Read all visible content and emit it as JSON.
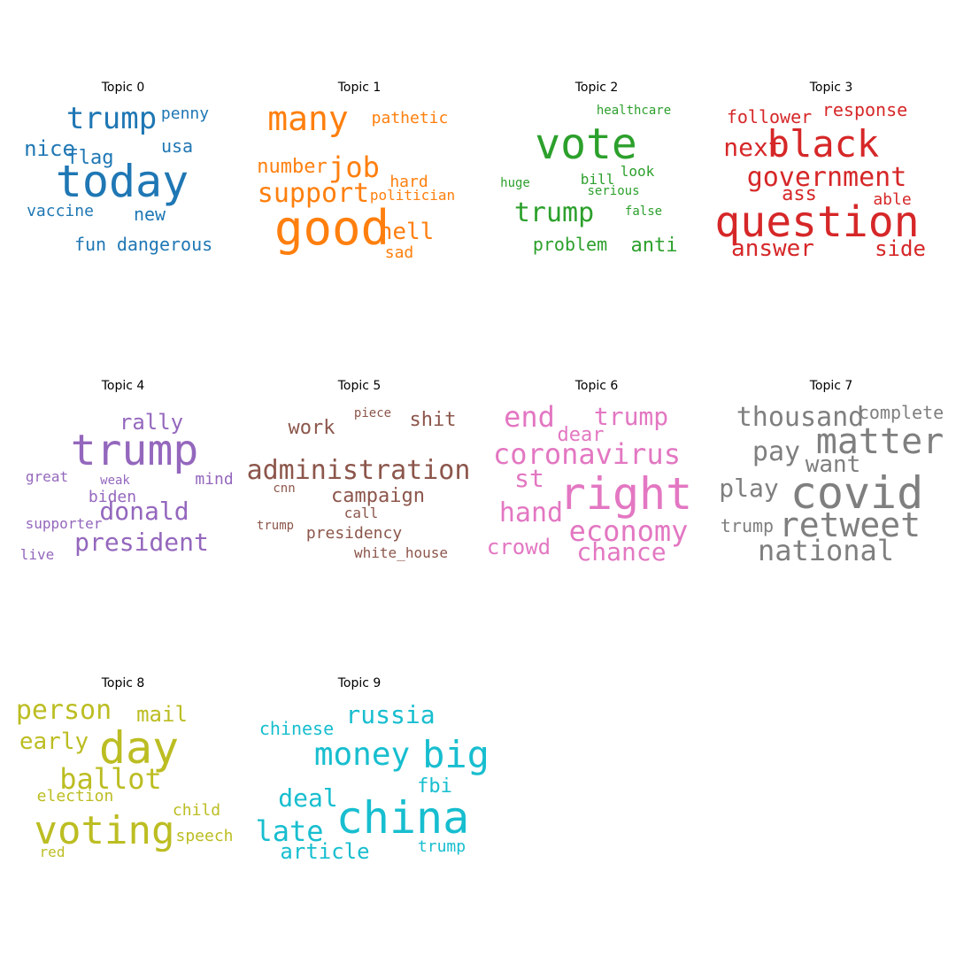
{
  "chart_data": [
    {
      "type": "wordcloud",
      "title": "Topic 0",
      "color": "#1f77b4",
      "words": [
        {
          "text": "today",
          "weight": 1.0
        },
        {
          "text": "trump",
          "weight": 0.6
        },
        {
          "text": "nice",
          "weight": 0.45
        },
        {
          "text": "usa",
          "weight": 0.4
        },
        {
          "text": "penny",
          "weight": 0.38
        },
        {
          "text": "flag",
          "weight": 0.4
        },
        {
          "text": "vaccine",
          "weight": 0.38
        },
        {
          "text": "new",
          "weight": 0.4
        },
        {
          "text": "fun",
          "weight": 0.4
        },
        {
          "text": "dangerous",
          "weight": 0.42
        }
      ]
    },
    {
      "type": "wordcloud",
      "title": "Topic 1",
      "color": "#ff7f0e",
      "words": [
        {
          "text": "good",
          "weight": 1.0
        },
        {
          "text": "many",
          "weight": 0.7
        },
        {
          "text": "job",
          "weight": 0.6
        },
        {
          "text": "support",
          "weight": 0.58
        },
        {
          "text": "number",
          "weight": 0.42
        },
        {
          "text": "pathetic",
          "weight": 0.35
        },
        {
          "text": "hard",
          "weight": 0.35
        },
        {
          "text": "politician",
          "weight": 0.32
        },
        {
          "text": "hell",
          "weight": 0.5
        },
        {
          "text": "sad",
          "weight": 0.38
        }
      ]
    },
    {
      "type": "wordcloud",
      "title": "Topic 2",
      "color": "#2ca02c",
      "words": [
        {
          "text": "vote",
          "weight": 1.0
        },
        {
          "text": "trump",
          "weight": 0.6
        },
        {
          "text": "healthcare",
          "weight": 0.28
        },
        {
          "text": "huge",
          "weight": 0.28
        },
        {
          "text": "bill",
          "weight": 0.32
        },
        {
          "text": "look",
          "weight": 0.34
        },
        {
          "text": "serious",
          "weight": 0.3
        },
        {
          "text": "false",
          "weight": 0.3
        },
        {
          "text": "problem",
          "weight": 0.4
        },
        {
          "text": "anti",
          "weight": 0.44
        }
      ]
    },
    {
      "type": "wordcloud",
      "title": "Topic 3",
      "color": "#d62728",
      "words": [
        {
          "text": "question",
          "weight": 1.0
        },
        {
          "text": "black",
          "weight": 0.85
        },
        {
          "text": "government",
          "weight": 0.6
        },
        {
          "text": "next",
          "weight": 0.58
        },
        {
          "text": "follower",
          "weight": 0.4
        },
        {
          "text": "response",
          "weight": 0.4
        },
        {
          "text": "ass",
          "weight": 0.42
        },
        {
          "text": "able",
          "weight": 0.36
        },
        {
          "text": "answer",
          "weight": 0.56
        },
        {
          "text": "side",
          "weight": 0.5
        }
      ]
    },
    {
      "type": "wordcloud",
      "title": "Topic 4",
      "color": "#9467bd",
      "words": [
        {
          "text": "trump",
          "weight": 1.0
        },
        {
          "text": "rally",
          "weight": 0.5
        },
        {
          "text": "donald",
          "weight": 0.6
        },
        {
          "text": "president",
          "weight": 0.58
        },
        {
          "text": "great",
          "weight": 0.3
        },
        {
          "text": "weak",
          "weight": 0.27
        },
        {
          "text": "mind",
          "weight": 0.34
        },
        {
          "text": "biden",
          "weight": 0.36
        },
        {
          "text": "supporter",
          "weight": 0.32
        },
        {
          "text": "live",
          "weight": 0.32
        }
      ]
    },
    {
      "type": "wordcloud",
      "title": "Topic 5",
      "color": "#8c564b",
      "words": [
        {
          "text": "administration",
          "weight": 0.58
        },
        {
          "text": "work",
          "weight": 0.46
        },
        {
          "text": "shit",
          "weight": 0.46
        },
        {
          "text": "piece",
          "weight": 0.28
        },
        {
          "text": "campaign",
          "weight": 0.44
        },
        {
          "text": "cnn",
          "weight": 0.28
        },
        {
          "text": "call",
          "weight": 0.3
        },
        {
          "text": "trump",
          "weight": 0.3
        },
        {
          "text": "presidency",
          "weight": 0.36
        },
        {
          "text": "white_house",
          "weight": 0.34
        }
      ]
    },
    {
      "type": "wordcloud",
      "title": "Topic 6",
      "color": "#e377c2",
      "words": [
        {
          "text": "right",
          "weight": 1.0
        },
        {
          "text": "coronavirus",
          "weight": 0.64
        },
        {
          "text": "economy",
          "weight": 0.64
        },
        {
          "text": "end",
          "weight": 0.6
        },
        {
          "text": "trump",
          "weight": 0.56
        },
        {
          "text": "dear",
          "weight": 0.42
        },
        {
          "text": "st",
          "weight": 0.52
        },
        {
          "text": "hand",
          "weight": 0.56
        },
        {
          "text": "crowd",
          "weight": 0.46
        },
        {
          "text": "chance",
          "weight": 0.54
        }
      ]
    },
    {
      "type": "wordcloud",
      "title": "Topic 7",
      "color": "#7f7f7f",
      "words": [
        {
          "text": "covid",
          "weight": 1.0
        },
        {
          "text": "matter",
          "weight": 0.85
        },
        {
          "text": "retweet",
          "weight": 0.75
        },
        {
          "text": "thousand",
          "weight": 0.6
        },
        {
          "text": "complete",
          "weight": 0.4
        },
        {
          "text": "pay",
          "weight": 0.6
        },
        {
          "text": "want",
          "weight": 0.55
        },
        {
          "text": "play",
          "weight": 0.55
        },
        {
          "text": "trump",
          "weight": 0.4
        },
        {
          "text": "national",
          "weight": 0.65
        }
      ]
    },
    {
      "type": "wordcloud",
      "title": "Topic 8",
      "color": "#bcbd22",
      "words": [
        {
          "text": "day",
          "weight": 1.0
        },
        {
          "text": "voting",
          "weight": 0.85
        },
        {
          "text": "ballot",
          "weight": 0.65
        },
        {
          "text": "person",
          "weight": 0.6
        },
        {
          "text": "mail",
          "weight": 0.5
        },
        {
          "text": "early",
          "weight": 0.55
        },
        {
          "text": "election",
          "weight": 0.4
        },
        {
          "text": "child",
          "weight": 0.42
        },
        {
          "text": "speech",
          "weight": 0.4
        },
        {
          "text": "red",
          "weight": 0.4
        }
      ]
    },
    {
      "type": "wordcloud",
      "title": "Topic 9",
      "color": "#17becf",
      "words": [
        {
          "text": "china",
          "weight": 1.0
        },
        {
          "text": "big",
          "weight": 0.85
        },
        {
          "text": "money",
          "weight": 0.75
        },
        {
          "text": "russia",
          "weight": 0.6
        },
        {
          "text": "chinese",
          "weight": 0.45
        },
        {
          "text": "deal",
          "weight": 0.6
        },
        {
          "text": "fbi",
          "weight": 0.45
        },
        {
          "text": "late",
          "weight": 0.65
        },
        {
          "text": "article",
          "weight": 0.5
        },
        {
          "text": "trump",
          "weight": 0.42
        }
      ]
    }
  ]
}
